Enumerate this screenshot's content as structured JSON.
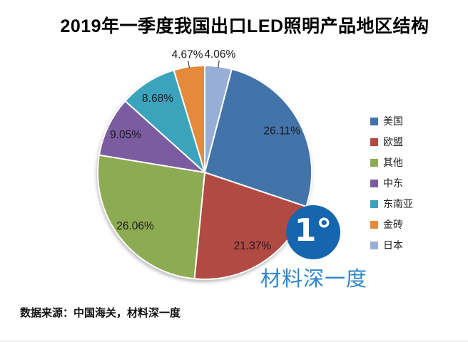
{
  "title": "2019年一季度我国出口LED照明产品地区结构",
  "source_note": "数据来源：中国海关，材料深一度",
  "watermark": {
    "logo_glyph": "1°",
    "text": "材料深一度",
    "circle_color": "#1566AE",
    "text_color": "#2E86C8"
  },
  "chart_data": {
    "type": "pie",
    "title": "2019年一季度我国出口LED照明产品地区结构",
    "value_unit": "percent",
    "legend_position": "right",
    "direction": "clockwise",
    "start_at": "top",
    "draw_order_from_top": [
      "japan",
      "usa",
      "eu",
      "other",
      "middle-east",
      "southeast-asia",
      "brics"
    ],
    "outside_label_max_pct": 5,
    "slices": [
      {
        "key": "usa",
        "label": "美国",
        "value": 26.11,
        "display": "26.11%",
        "color": "#4273A9"
      },
      {
        "key": "eu",
        "label": "欧盟",
        "value": 21.37,
        "display": "21.37%",
        "color": "#B24A44"
      },
      {
        "key": "other",
        "label": "其他",
        "value": 26.06,
        "display": "26.06%",
        "color": "#8DAB52"
      },
      {
        "key": "middle-east",
        "label": "中东",
        "value": 9.05,
        "display": "9.05%",
        "color": "#7B5CA0"
      },
      {
        "key": "southeast-asia",
        "label": "东南亚",
        "value": 8.68,
        "display": "8.68%",
        "color": "#3BA4BC"
      },
      {
        "key": "brics",
        "label": "金砖",
        "value": 4.67,
        "display": "4.67%",
        "color": "#E58A3A"
      },
      {
        "key": "japan",
        "label": "日本",
        "value": 4.06,
        "display": "4.06%",
        "color": "#99AED6"
      }
    ]
  }
}
